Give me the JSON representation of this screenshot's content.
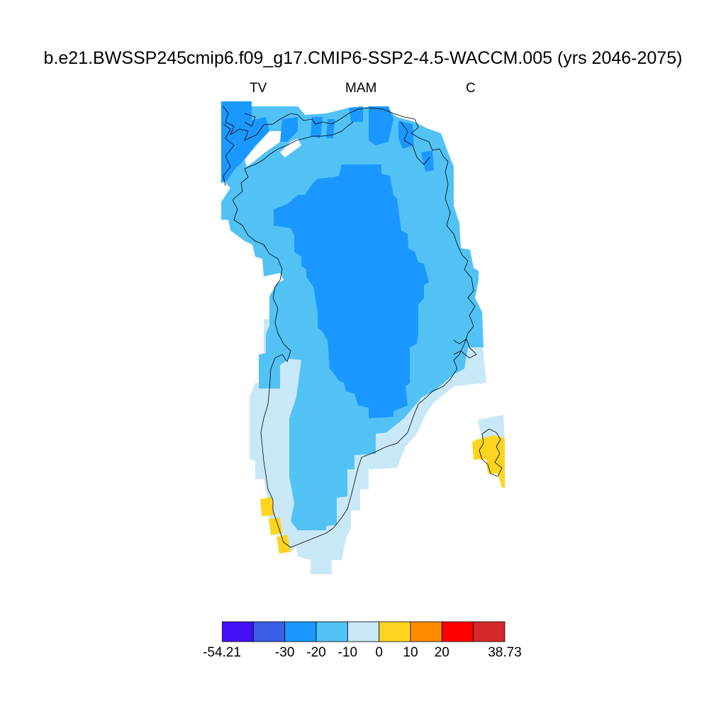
{
  "title": "b.e21.BWSSP245cmip6.f09_g17.CMIP6-SSP2-4.5-WACCM.005 (yrs 2046-2075)",
  "subtitle_left": "TV",
  "subtitle_center": "MAM",
  "subtitle_right": "C",
  "map": {
    "region": "Greenland",
    "coastline_color": "#000000"
  },
  "colorbar": {
    "min": -54.21,
    "max": 38.73,
    "levels": [
      -40,
      -30,
      -20,
      -10,
      0,
      10,
      20,
      30
    ],
    "colors": [
      "#4410f5",
      "#3a5fe6",
      "#1a98ff",
      "#52c2f5",
      "#c9e8f7",
      "#ffd420",
      "#ff8c00",
      "#ff0000",
      "#d52a2a"
    ],
    "tick_labels": [
      "-54.21",
      "-30",
      "-20",
      "-10",
      "0",
      "10",
      "20",
      "38.73"
    ]
  }
}
